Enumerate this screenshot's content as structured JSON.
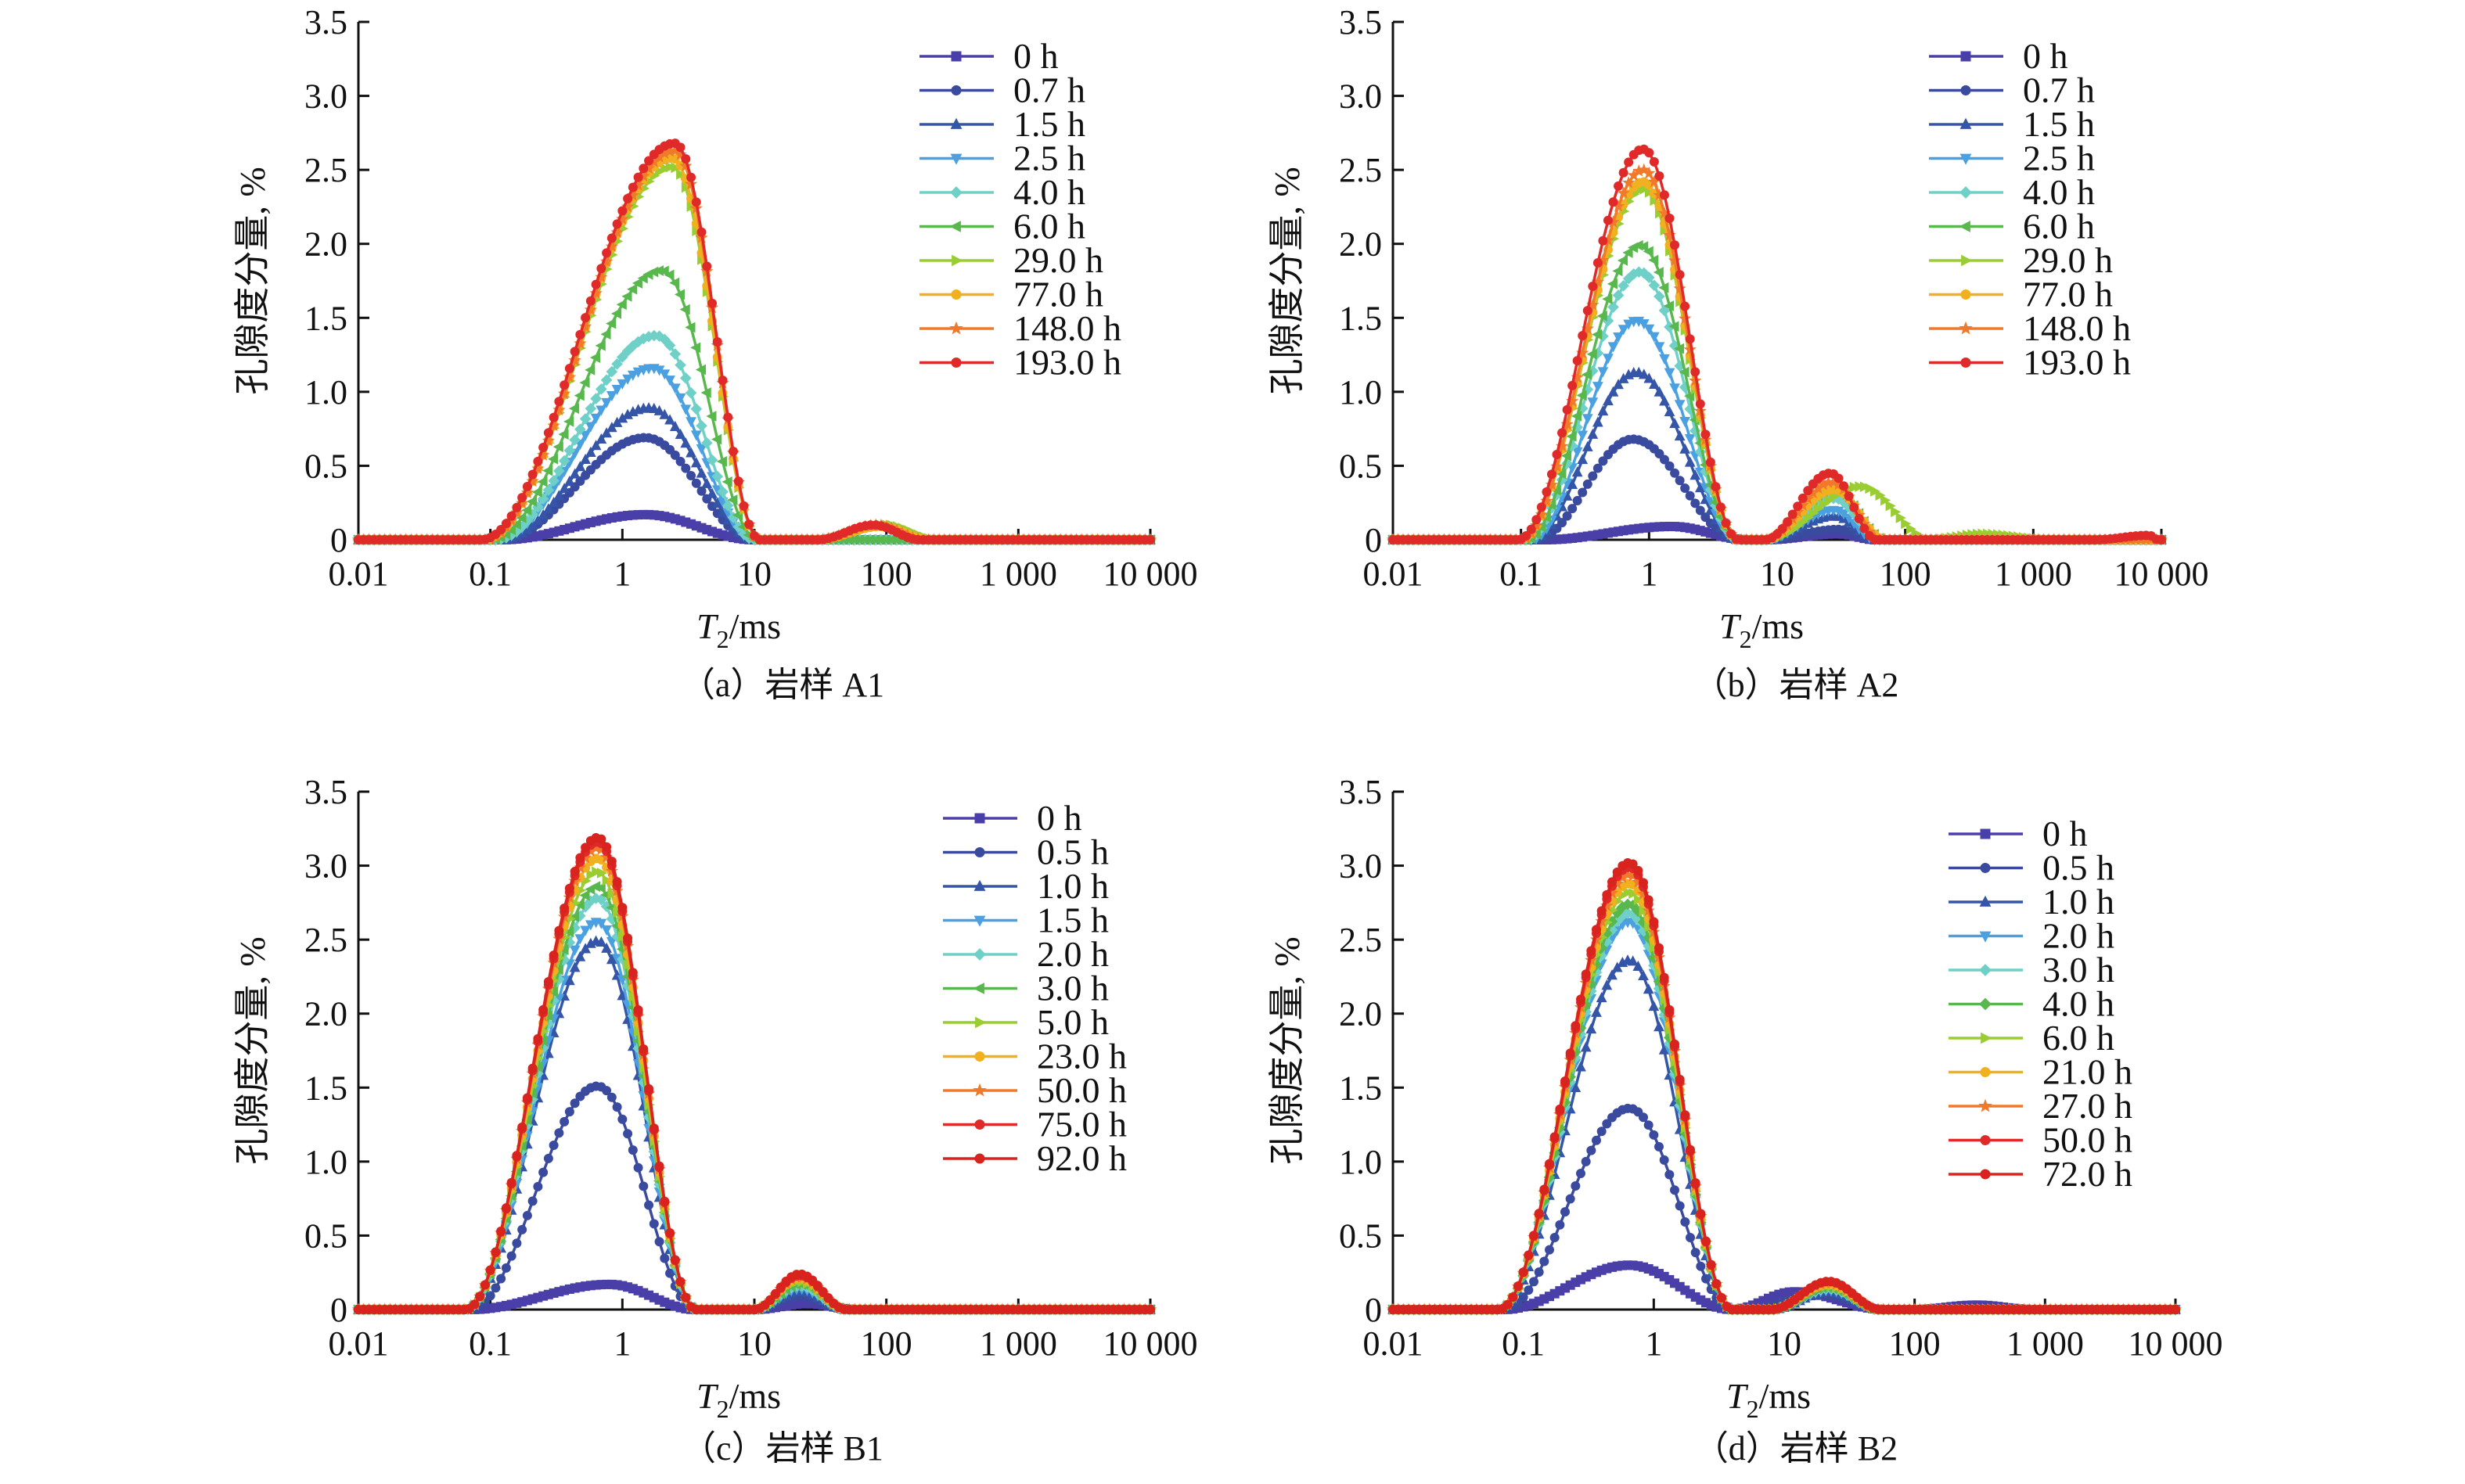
{
  "figure": {
    "ylabel": "孔隙度分量, %",
    "xlabel_main": "T",
    "xlabel_sub": "2",
    "xlabel_unit": "/ms",
    "x_ticks": [
      "0.01",
      "0.1",
      "1",
      "10",
      "100",
      "1 000",
      "10 000"
    ],
    "y_ticks": [
      "0",
      "0.5",
      "1.0",
      "1.5",
      "2.0",
      "2.5",
      "3.0",
      "3.5"
    ]
  },
  "colors": [
    "#4a3fa8",
    "#3a4a9e",
    "#3555a8",
    "#4aa0e0",
    "#6fd0c8",
    "#58b84e",
    "#9acd32",
    "#f0b020",
    "#f07a2a",
    "#e02a2a",
    "#d8231f"
  ],
  "chart_data": [
    {
      "type": "line",
      "caption": "（a）岩样 A1",
      "xscale": "log",
      "xlim": [
        0.01,
        10000
      ],
      "ylim": [
        0,
        3.5
      ],
      "grid": false,
      "legend_position": "top-right",
      "series": [
        {
          "name": "0 h",
          "marker": "square",
          "peaks": [
            {
              "amp": 0.17,
              "center": 1.5,
              "low": 0.12,
              "high": 10
            }
          ]
        },
        {
          "name": "0.7 h",
          "marker": "circle",
          "peaks": [
            {
              "amp": 0.69,
              "center": 1.5,
              "low": 0.12,
              "high": 10
            }
          ]
        },
        {
          "name": "1.5 h",
          "marker": "triangle",
          "peaks": [
            {
              "amp": 0.89,
              "center": 1.6,
              "low": 0.12,
              "high": 10
            }
          ]
        },
        {
          "name": "2.5 h",
          "marker": "triangle-down",
          "peaks": [
            {
              "amp": 1.16,
              "center": 1.7,
              "low": 0.11,
              "high": 10
            }
          ]
        },
        {
          "name": "4.0 h",
          "marker": "diamond",
          "peaks": [
            {
              "amp": 1.38,
              "center": 1.8,
              "low": 0.11,
              "high": 10
            }
          ]
        },
        {
          "name": "6.0 h",
          "marker": "triangle-left",
          "peaks": [
            {
              "amp": 1.82,
              "center": 2.0,
              "low": 0.1,
              "high": 10.5
            }
          ]
        },
        {
          "name": "29.0 h",
          "marker": "triangle-right",
          "peaks": [
            {
              "amp": 2.52,
              "center": 2.4,
              "low": 0.09,
              "high": 11
            },
            {
              "amp": 0.1,
              "center": 100,
              "low": 30,
              "high": 250
            }
          ]
        },
        {
          "name": "77.0 h",
          "marker": "circle",
          "peaks": [
            {
              "amp": 2.58,
              "center": 2.4,
              "low": 0.09,
              "high": 11
            },
            {
              "amp": 0.09,
              "center": 90,
              "low": 30,
              "high": 220
            }
          ]
        },
        {
          "name": "148.0 h",
          "marker": "star",
          "peaks": [
            {
              "amp": 2.63,
              "center": 2.5,
              "low": 0.09,
              "high": 11
            },
            {
              "amp": 0.1,
              "center": 85,
              "low": 30,
              "high": 200
            }
          ]
        },
        {
          "name": "193.0 h",
          "marker": "circle",
          "peaks": [
            {
              "amp": 2.68,
              "center": 2.5,
              "low": 0.085,
              "high": 11
            },
            {
              "amp": 0.1,
              "center": 80,
              "low": 30,
              "high": 180
            }
          ]
        }
      ]
    },
    {
      "type": "line",
      "caption": "（b）岩样 A2",
      "xscale": "log",
      "xlim": [
        0.01,
        10000
      ],
      "ylim": [
        0,
        3.5
      ],
      "grid": false,
      "legend_position": "top-right",
      "series": [
        {
          "name": "0 h",
          "marker": "square",
          "peaks": [
            {
              "amp": 0.09,
              "center": 1.5,
              "low": 0.15,
              "high": 6
            },
            {
              "amp": 0.04,
              "center": 30,
              "low": 8,
              "high": 60
            }
          ]
        },
        {
          "name": "0.7 h",
          "marker": "circle",
          "peaks": [
            {
              "amp": 0.68,
              "center": 0.75,
              "low": 0.13,
              "high": 5
            },
            {
              "amp": 0.07,
              "center": 30,
              "low": 8,
              "high": 60
            }
          ]
        },
        {
          "name": "1.5 h",
          "marker": "triangle",
          "peaks": [
            {
              "amp": 1.13,
              "center": 0.8,
              "low": 0.12,
              "high": 5
            },
            {
              "amp": 0.16,
              "center": 28,
              "low": 8,
              "high": 60
            }
          ]
        },
        {
          "name": "2.5 h",
          "marker": "triangle-down",
          "peaks": [
            {
              "amp": 1.48,
              "center": 0.8,
              "low": 0.12,
              "high": 5
            },
            {
              "amp": 0.2,
              "center": 28,
              "low": 8,
              "high": 60
            }
          ]
        },
        {
          "name": "4.0 h",
          "marker": "diamond",
          "peaks": [
            {
              "amp": 1.81,
              "center": 0.85,
              "low": 0.11,
              "high": 5
            },
            {
              "amp": 0.28,
              "center": 28,
              "low": 8,
              "high": 65
            }
          ]
        },
        {
          "name": "6.0 h",
          "marker": "triangle-left",
          "peaks": [
            {
              "amp": 1.99,
              "center": 0.85,
              "low": 0.11,
              "high": 5
            },
            {
              "amp": 0.34,
              "center": 28,
              "low": 8,
              "high": 70
            }
          ]
        },
        {
          "name": "29.0 h",
          "marker": "triangle-right",
          "peaks": [
            {
              "amp": 2.37,
              "center": 0.9,
              "low": 0.1,
              "high": 5
            },
            {
              "amp": 0.36,
              "center": 45,
              "low": 8,
              "high": 160
            },
            {
              "amp": 0.04,
              "center": 400,
              "low": 150,
              "high": 1500
            }
          ]
        },
        {
          "name": "77.0 h",
          "marker": "circle",
          "peaks": [
            {
              "amp": 2.42,
              "center": 0.9,
              "low": 0.1,
              "high": 5
            },
            {
              "amp": 0.34,
              "center": 28,
              "low": 8,
              "high": 70
            }
          ]
        },
        {
          "name": "148.0 h",
          "marker": "star",
          "peaks": [
            {
              "amp": 2.5,
              "center": 0.9,
              "low": 0.1,
              "high": 5
            },
            {
              "amp": 0.39,
              "center": 27,
              "low": 8,
              "high": 65
            }
          ]
        },
        {
          "name": "193.0 h",
          "marker": "circle",
          "peaks": [
            {
              "amp": 2.64,
              "center": 0.9,
              "low": 0.095,
              "high": 5
            },
            {
              "amp": 0.45,
              "center": 26,
              "low": 8,
              "high": 60
            },
            {
              "amp": 0.03,
              "center": 8000,
              "low": 3000,
              "high": 9500
            }
          ]
        }
      ]
    },
    {
      "type": "line",
      "caption": "（c）岩样 B1",
      "xscale": "log",
      "xlim": [
        0.01,
        10000
      ],
      "ylim": [
        0,
        3.5
      ],
      "grid": false,
      "legend_position": "top-right",
      "series": [
        {
          "name": "0 h",
          "marker": "square",
          "peaks": [
            {
              "amp": 0.17,
              "center": 0.8,
              "low": 0.07,
              "high": 3.6
            },
            {
              "amp": 0.04,
              "center": 25,
              "low": 10,
              "high": 60
            }
          ]
        },
        {
          "name": "0.5 h",
          "marker": "circle",
          "peaks": [
            {
              "amp": 1.51,
              "center": 0.65,
              "low": 0.07,
              "high": 3.6
            },
            {
              "amp": 0.09,
              "center": 22,
              "low": 10,
              "high": 50
            }
          ]
        },
        {
          "name": "1.0 h",
          "marker": "triangle",
          "peaks": [
            {
              "amp": 2.49,
              "center": 0.65,
              "low": 0.065,
              "high": 3.6
            },
            {
              "amp": 0.12,
              "center": 22,
              "low": 10,
              "high": 50
            }
          ]
        },
        {
          "name": "1.5 h",
          "marker": "triangle-down",
          "peaks": [
            {
              "amp": 2.62,
              "center": 0.65,
              "low": 0.065,
              "high": 3.6
            },
            {
              "amp": 0.14,
              "center": 22,
              "low": 10,
              "high": 50
            }
          ]
        },
        {
          "name": "2.0 h",
          "marker": "diamond",
          "peaks": [
            {
              "amp": 2.78,
              "center": 0.65,
              "low": 0.065,
              "high": 3.6
            },
            {
              "amp": 0.16,
              "center": 22,
              "low": 10,
              "high": 50
            }
          ]
        },
        {
          "name": "3.0 h",
          "marker": "triangle-left",
          "peaks": [
            {
              "amp": 2.86,
              "center": 0.65,
              "low": 0.065,
              "high": 3.6
            },
            {
              "amp": 0.17,
              "center": 22,
              "low": 10,
              "high": 50
            }
          ]
        },
        {
          "name": "5.0 h",
          "marker": "triangle-right",
          "peaks": [
            {
              "amp": 2.96,
              "center": 0.65,
              "low": 0.065,
              "high": 3.6
            },
            {
              "amp": 0.19,
              "center": 22,
              "low": 10,
              "high": 50
            }
          ]
        },
        {
          "name": "23.0 h",
          "marker": "circle",
          "peaks": [
            {
              "amp": 3.05,
              "center": 0.65,
              "low": 0.065,
              "high": 3.6
            },
            {
              "amp": 0.21,
              "center": 22,
              "low": 10,
              "high": 50
            }
          ]
        },
        {
          "name": "50.0 h",
          "marker": "star",
          "peaks": [
            {
              "amp": 3.12,
              "center": 0.65,
              "low": 0.065,
              "high": 3.6
            },
            {
              "amp": 0.22,
              "center": 22,
              "low": 10,
              "high": 50
            }
          ]
        },
        {
          "name": "75.0 h",
          "marker": "circle",
          "peaks": [
            {
              "amp": 3.16,
              "center": 0.65,
              "low": 0.065,
              "high": 3.6
            },
            {
              "amp": 0.23,
              "center": 22,
              "low": 10,
              "high": 50
            }
          ]
        },
        {
          "name": "92.0 h",
          "marker": "circle",
          "peaks": [
            {
              "amp": 3.19,
              "center": 0.65,
              "low": 0.065,
              "high": 3.6
            },
            {
              "amp": 0.24,
              "center": 22,
              "low": 10,
              "high": 50
            }
          ]
        }
      ]
    },
    {
      "type": "line",
      "caption": "（d）岩样 B2",
      "xscale": "log",
      "xlim": [
        0.01,
        10000
      ],
      "ylim": [
        0,
        3.5
      ],
      "grid": false,
      "legend_position": "top-right",
      "series": [
        {
          "name": "0 h",
          "marker": "square",
          "peaks": [
            {
              "amp": 0.3,
              "center": 0.65,
              "low": 0.07,
              "high": 4
            },
            {
              "amp": 0.12,
              "center": 12,
              "low": 4,
              "high": 60
            },
            {
              "amp": 0.03,
              "center": 300,
              "low": 100,
              "high": 800
            }
          ]
        },
        {
          "name": "0.5 h",
          "marker": "circle",
          "peaks": [
            {
              "amp": 1.36,
              "center": 0.65,
              "low": 0.07,
              "high": 4
            },
            {
              "amp": 0.1,
              "center": 20,
              "low": 5,
              "high": 60
            }
          ]
        },
        {
          "name": "1.0 h",
          "marker": "triangle",
          "peaks": [
            {
              "amp": 2.36,
              "center": 0.65,
              "low": 0.065,
              "high": 4
            },
            {
              "amp": 0.12,
              "center": 22,
              "low": 8,
              "high": 55
            }
          ]
        },
        {
          "name": "2.0 h",
          "marker": "triangle-down",
          "peaks": [
            {
              "amp": 2.62,
              "center": 0.65,
              "low": 0.065,
              "high": 4
            },
            {
              "amp": 0.13,
              "center": 22,
              "low": 8,
              "high": 55
            }
          ]
        },
        {
          "name": "3.0 h",
          "marker": "diamond",
          "peaks": [
            {
              "amp": 2.68,
              "center": 0.65,
              "low": 0.065,
              "high": 4
            },
            {
              "amp": 0.14,
              "center": 22,
              "low": 8,
              "high": 55
            }
          ]
        },
        {
          "name": "4.0 h",
          "marker": "diamond",
          "peaks": [
            {
              "amp": 2.74,
              "center": 0.65,
              "low": 0.065,
              "high": 4
            },
            {
              "amp": 0.15,
              "center": 22,
              "low": 8,
              "high": 55
            }
          ]
        },
        {
          "name": "6.0 h",
          "marker": "triangle-right",
          "peaks": [
            {
              "amp": 2.82,
              "center": 0.65,
              "low": 0.065,
              "high": 4
            },
            {
              "amp": 0.16,
              "center": 22,
              "low": 8,
              "high": 55
            }
          ]
        },
        {
          "name": "21.0 h",
          "marker": "circle",
          "peaks": [
            {
              "amp": 2.88,
              "center": 0.65,
              "low": 0.065,
              "high": 4
            },
            {
              "amp": 0.17,
              "center": 22,
              "low": 8,
              "high": 55
            }
          ]
        },
        {
          "name": "27.0 h",
          "marker": "star",
          "peaks": [
            {
              "amp": 2.94,
              "center": 0.65,
              "low": 0.065,
              "high": 4
            },
            {
              "amp": 0.18,
              "center": 22,
              "low": 8,
              "high": 55
            }
          ]
        },
        {
          "name": "50.0 h",
          "marker": "circle",
          "peaks": [
            {
              "amp": 2.99,
              "center": 0.65,
              "low": 0.065,
              "high": 4
            },
            {
              "amp": 0.19,
              "center": 22,
              "low": 8,
              "high": 55
            }
          ]
        },
        {
          "name": "72.0 h",
          "marker": "circle",
          "peaks": [
            {
              "amp": 3.02,
              "center": 0.65,
              "low": 0.065,
              "high": 4
            },
            {
              "amp": 0.19,
              "center": 22,
              "low": 8,
              "high": 55
            }
          ]
        }
      ]
    }
  ]
}
